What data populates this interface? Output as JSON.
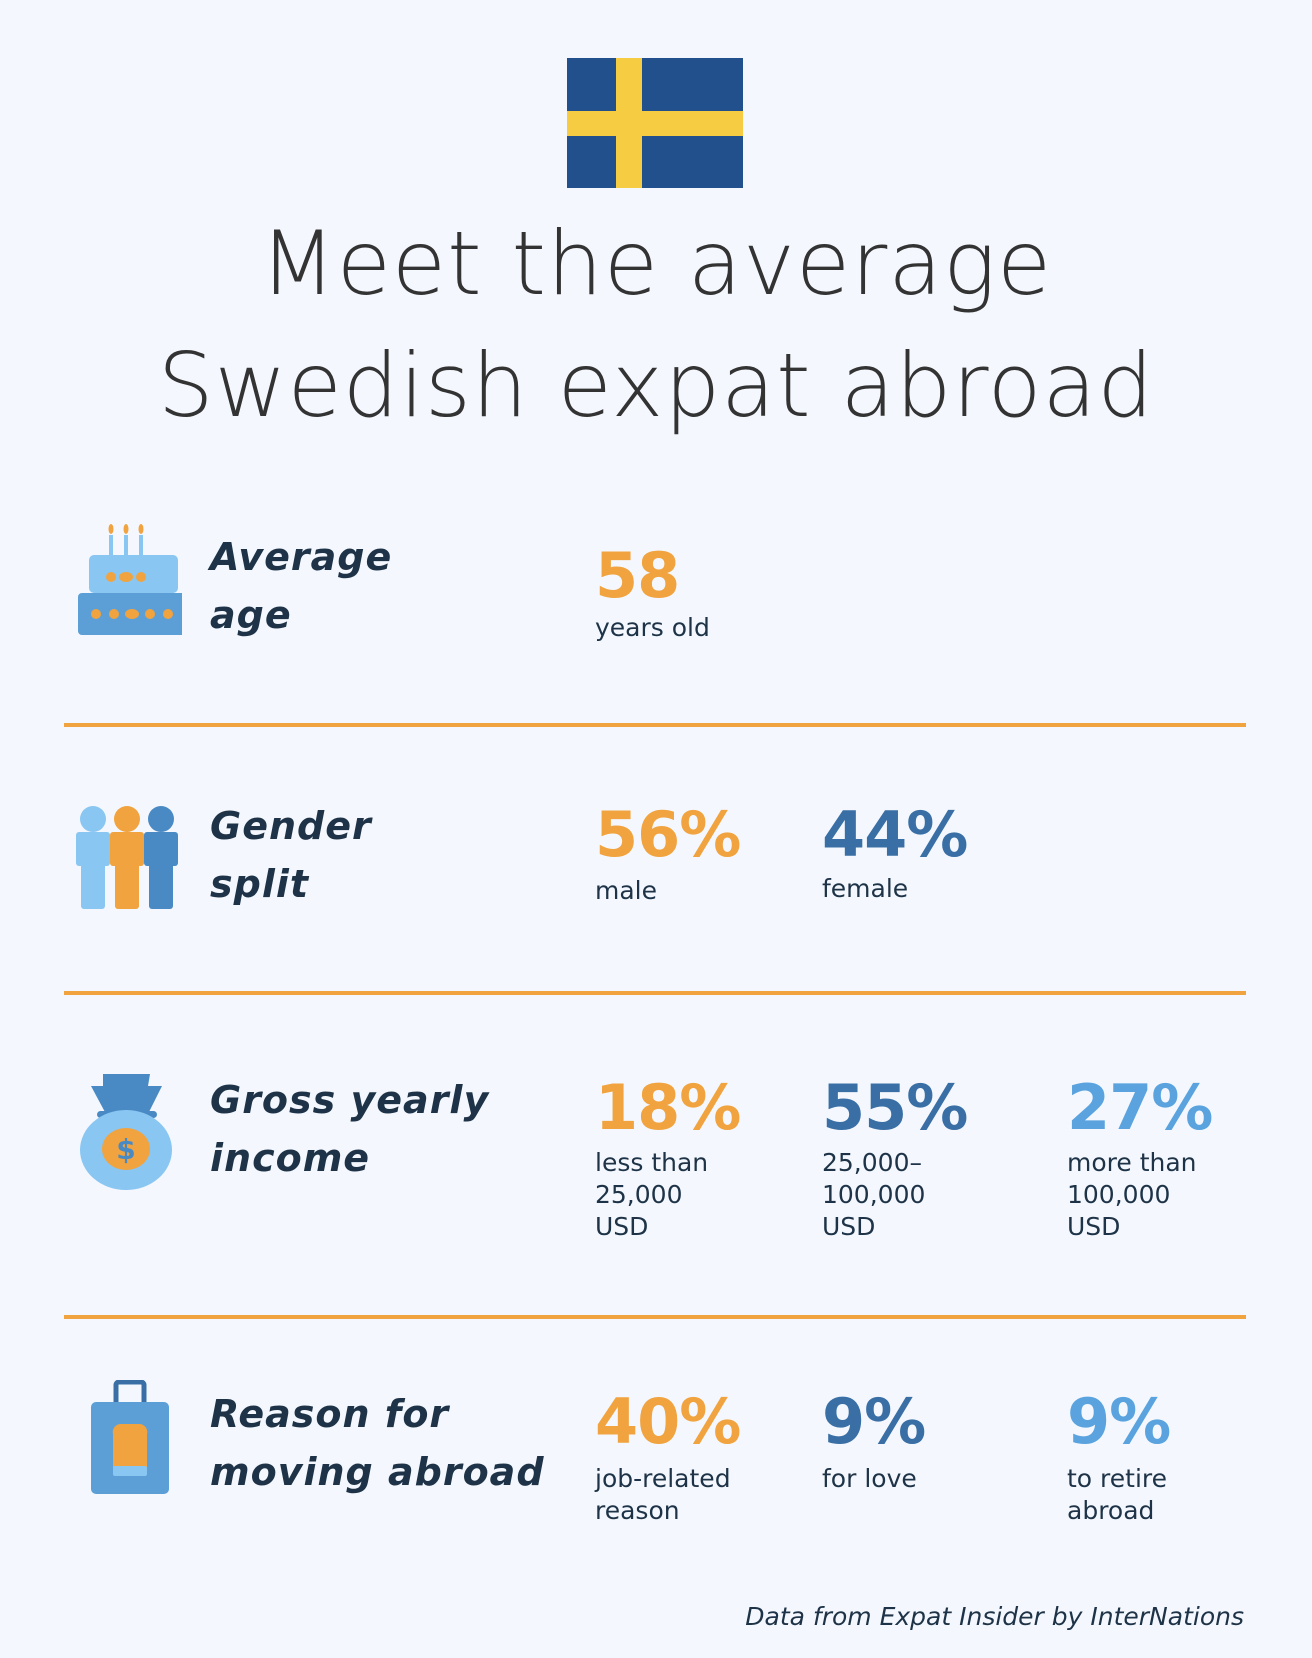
{
  "title": {
    "line1": "Meet the average",
    "line2": "Swedish expat abroad"
  },
  "colors": {
    "orange": "#F0A33F",
    "dark_blue": "#3A6FA5",
    "light_blue": "#5BA3DE",
    "flag_blue": "#22508C",
    "flag_yellow": "#F6CD42"
  },
  "rows": [
    {
      "icon": "birthday-cake-icon",
      "label1": "Average",
      "label2": "age",
      "stats": [
        {
          "value": "58",
          "desc": [
            "years old"
          ]
        }
      ]
    },
    {
      "icon": "people-icon",
      "label1": "Gender",
      "label2": "split",
      "stats": [
        {
          "value": "56%",
          "desc": [
            "male"
          ]
        },
        {
          "value": "44%",
          "desc": [
            "female"
          ]
        }
      ]
    },
    {
      "icon": "money-bag-icon",
      "label1": "Gross yearly",
      "label2": "income",
      "stats": [
        {
          "value": "18%",
          "desc": [
            "less than",
            "25,000",
            "USD"
          ]
        },
        {
          "value": "55%",
          "desc": [
            "25,000–",
            "100,000",
            "USD"
          ]
        },
        {
          "value": "27%",
          "desc": [
            "more than",
            "100,000",
            "USD"
          ]
        }
      ]
    },
    {
      "icon": "suitcase-icon",
      "label1": "Reason for",
      "label2": "moving abroad",
      "stats": [
        {
          "value": "40%",
          "desc": [
            "job-related",
            "reason"
          ]
        },
        {
          "value": "9%",
          "desc": [
            "for love"
          ]
        },
        {
          "value": "9%",
          "desc": [
            "to retire",
            "abroad"
          ]
        }
      ]
    }
  ],
  "footer": "Data from Expat Insider by InterNations"
}
